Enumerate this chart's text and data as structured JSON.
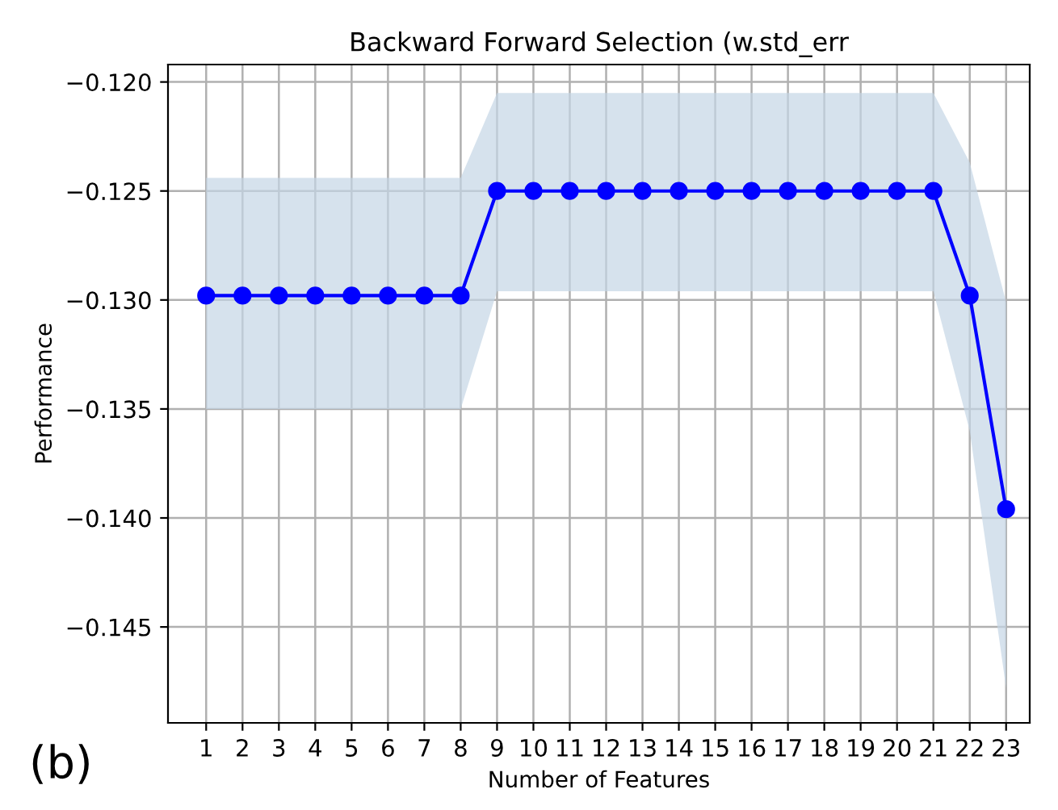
{
  "chart_data": {
    "type": "line",
    "title": "Backward Forward Selection (w.std_err",
    "xlabel": "Number of Features",
    "ylabel": "Performance",
    "x": [
      1,
      2,
      3,
      4,
      5,
      6,
      7,
      8,
      9,
      10,
      11,
      12,
      13,
      14,
      15,
      16,
      17,
      18,
      19,
      20,
      21,
      22,
      23
    ],
    "series": [
      {
        "color": "#0000ff",
        "values": [
          -0.1298,
          -0.1298,
          -0.1298,
          -0.1298,
          -0.1298,
          -0.1298,
          -0.1298,
          -0.1298,
          -0.125,
          -0.125,
          -0.125,
          -0.125,
          -0.125,
          -0.125,
          -0.125,
          -0.125,
          -0.125,
          -0.125,
          -0.125,
          -0.125,
          -0.125,
          -0.1298,
          -0.1396
        ],
        "lower": [
          -0.135,
          -0.135,
          -0.135,
          -0.135,
          -0.135,
          -0.135,
          -0.135,
          -0.135,
          -0.1296,
          -0.1296,
          -0.1296,
          -0.1296,
          -0.1296,
          -0.1296,
          -0.1296,
          -0.1296,
          -0.1296,
          -0.1296,
          -0.1296,
          -0.1296,
          -0.1296,
          -0.136,
          -0.1478
        ],
        "upper": [
          -0.1244,
          -0.1244,
          -0.1244,
          -0.1244,
          -0.1244,
          -0.1244,
          -0.1244,
          -0.1244,
          -0.1205,
          -0.1205,
          -0.1205,
          -0.1205,
          -0.1205,
          -0.1205,
          -0.1205,
          -0.1205,
          -0.1205,
          -0.1205,
          -0.1205,
          -0.1205,
          -0.1205,
          -0.1237,
          -0.1301
        ]
      }
    ],
    "xlim": [
      -0.05,
      23.65
    ],
    "ylim": [
      -0.1494,
      -0.1192
    ],
    "xticks": [
      1,
      2,
      3,
      4,
      5,
      6,
      7,
      8,
      9,
      10,
      11,
      12,
      13,
      14,
      15,
      16,
      17,
      18,
      19,
      20,
      21,
      22,
      23
    ],
    "yticks": [
      {
        "value": -0.145,
        "label": "−0.145"
      },
      {
        "value": -0.14,
        "label": "−0.140"
      },
      {
        "value": -0.135,
        "label": "−0.135"
      },
      {
        "value": -0.13,
        "label": "−0.130"
      },
      {
        "value": -0.125,
        "label": "−0.125"
      },
      {
        "value": -0.12,
        "label": "−0.120"
      }
    ],
    "grid": true,
    "marker": "circle",
    "line_style": "solid",
    "annotations": [
      "(b)"
    ]
  }
}
